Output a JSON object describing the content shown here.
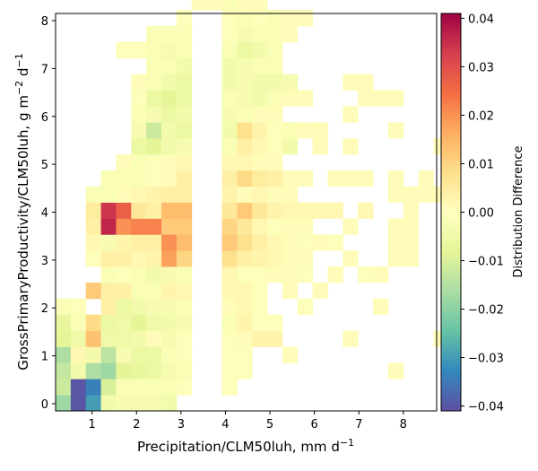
{
  "chart_data": {
    "type": "heatmap",
    "title": "",
    "xlabel": "Precipitation/CLM50luh,  mm d",
    "xlabel_unit_exp": "−1",
    "ylabel": "GrossPrimaryProductivity/CLM50luh,  g m",
    "ylabel_exp1": "−2",
    "ylabel_mid": " d",
    "ylabel_exp2": "−1",
    "xlim": [
      0.18,
      8.75
    ],
    "ylim": [
      -0.15,
      8.15
    ],
    "x_ticks": [
      1,
      2,
      3,
      4,
      5,
      6,
      7,
      8
    ],
    "x_tick_labels": [
      "1",
      "2",
      "3",
      "4",
      "5",
      "6",
      "7",
      "8"
    ],
    "y_ticks": [
      0,
      1,
      2,
      3,
      4,
      5,
      6,
      7,
      8
    ],
    "y_tick_labels": [
      "0",
      "1",
      "2",
      "3",
      "4",
      "5",
      "6",
      "7",
      "8"
    ],
    "x_bin_start": 0.18,
    "x_bin_width": 0.34,
    "y_bin_start": -0.15,
    "y_bin_width": 0.335,
    "colorbar": {
      "label": "Distribution Difference",
      "colormap": "Spectral_r",
      "vmin": -0.041,
      "vmax": 0.041,
      "ticks": [
        -0.04,
        -0.03,
        -0.02,
        -0.01,
        0.0,
        0.01,
        0.02,
        0.03,
        0.04
      ],
      "tick_labels": [
        "−0.04",
        "−0.03",
        "−0.02",
        "−0.01",
        "0.00",
        "0.01",
        "0.02",
        "0.03",
        "0.04"
      ]
    },
    "cells_note": "each cell: [x_bin_index, y_bin_index, value]",
    "cells": [
      [
        0,
        0,
        -0.018
      ],
      [
        1,
        0,
        -0.04
      ],
      [
        2,
        0,
        -0.03
      ],
      [
        3,
        0,
        -0.004
      ],
      [
        4,
        0,
        -0.003
      ],
      [
        5,
        0,
        -0.003
      ],
      [
        6,
        0,
        -0.003
      ],
      [
        7,
        0,
        -0.004
      ],
      [
        0,
        1,
        -0.012
      ],
      [
        1,
        1,
        -0.04
      ],
      [
        2,
        1,
        -0.034
      ],
      [
        3,
        1,
        -0.01
      ],
      [
        4,
        1,
        -0.002
      ],
      [
        5,
        1,
        -0.002
      ],
      [
        6,
        1,
        -0.002
      ],
      [
        7,
        1,
        -0.002
      ],
      [
        8,
        1,
        -0.001
      ],
      [
        11,
        1,
        -0.001
      ],
      [
        0,
        2,
        -0.013
      ],
      [
        1,
        2,
        -0.004
      ],
      [
        2,
        2,
        -0.016
      ],
      [
        3,
        2,
        -0.018
      ],
      [
        4,
        2,
        -0.008
      ],
      [
        5,
        2,
        -0.007
      ],
      [
        6,
        2,
        -0.006
      ],
      [
        7,
        2,
        -0.003
      ],
      [
        8,
        2,
        -0.002
      ],
      [
        11,
        2,
        -0.001
      ],
      [
        12,
        2,
        -0.001
      ],
      [
        22,
        2,
        0.001
      ],
      [
        0,
        3,
        -0.016
      ],
      [
        1,
        3,
        0.002
      ],
      [
        2,
        3,
        -0.004
      ],
      [
        3,
        3,
        -0.014
      ],
      [
        4,
        3,
        -0.003
      ],
      [
        5,
        3,
        -0.006
      ],
      [
        6,
        3,
        -0.006
      ],
      [
        7,
        3,
        -0.002
      ],
      [
        8,
        3,
        -0.001
      ],
      [
        11,
        3,
        -0.001
      ],
      [
        12,
        3,
        -0.001
      ],
      [
        15,
        3,
        0.001
      ],
      [
        0,
        4,
        -0.008
      ],
      [
        1,
        4,
        -0.005
      ],
      [
        2,
        4,
        0.013
      ],
      [
        3,
        4,
        -0.005
      ],
      [
        4,
        4,
        -0.005
      ],
      [
        5,
        4,
        -0.004
      ],
      [
        6,
        4,
        0.001
      ],
      [
        7,
        4,
        -0.003
      ],
      [
        8,
        4,
        -0.001
      ],
      [
        11,
        4,
        -0.001
      ],
      [
        12,
        4,
        0.001
      ],
      [
        13,
        4,
        0.003
      ],
      [
        14,
        4,
        0.003
      ],
      [
        19,
        4,
        0.001
      ],
      [
        25,
        4,
        0.001
      ],
      [
        0,
        5,
        -0.007
      ],
      [
        1,
        5,
        -0.002
      ],
      [
        2,
        5,
        0.009
      ],
      [
        3,
        5,
        -0.006
      ],
      [
        4,
        5,
        -0.005
      ],
      [
        5,
        5,
        -0.008
      ],
      [
        6,
        5,
        -0.005
      ],
      [
        7,
        5,
        -0.004
      ],
      [
        8,
        5,
        -0.003
      ],
      [
        11,
        5,
        -0.002
      ],
      [
        12,
        5,
        0.003
      ],
      [
        13,
        5,
        -0.001
      ],
      [
        14,
        5,
        -0.001
      ],
      [
        0,
        6,
        -0.002
      ],
      [
        1,
        6,
        -0.001
      ],
      [
        3,
        6,
        0.004
      ],
      [
        4,
        6,
        -0.006
      ],
      [
        5,
        6,
        -0.004
      ],
      [
        6,
        6,
        -0.003
      ],
      [
        7,
        6,
        -0.003
      ],
      [
        8,
        6,
        -0.002
      ],
      [
        11,
        6,
        0.001
      ],
      [
        12,
        6,
        0.002
      ],
      [
        13,
        6,
        -0.001
      ],
      [
        16,
        6,
        -0.001
      ],
      [
        21,
        6,
        0.001
      ],
      [
        2,
        7,
        0.012
      ],
      [
        3,
        7,
        0.004
      ],
      [
        4,
        7,
        0.004
      ],
      [
        5,
        7,
        -0.002
      ],
      [
        6,
        7,
        -0.002
      ],
      [
        7,
        7,
        0.003
      ],
      [
        8,
        7,
        0.002
      ],
      [
        11,
        7,
        0.002
      ],
      [
        12,
        7,
        0.002
      ],
      [
        13,
        7,
        -0.001
      ],
      [
        15,
        7,
        0.001
      ],
      [
        17,
        7,
        0.001
      ],
      [
        3,
        8,
        -0.002
      ],
      [
        4,
        8,
        -0.001
      ],
      [
        5,
        8,
        -0.002
      ],
      [
        6,
        8,
        -0.004
      ],
      [
        7,
        8,
        -0.003
      ],
      [
        8,
        8,
        -0.002
      ],
      [
        11,
        8,
        0.002
      ],
      [
        12,
        8,
        -0.001
      ],
      [
        13,
        8,
        -0.001
      ],
      [
        14,
        8,
        0.001
      ],
      [
        15,
        8,
        0.001
      ],
      [
        16,
        8,
        -0.001
      ],
      [
        18,
        8,
        0.001
      ],
      [
        20,
        8,
        -0.001
      ],
      [
        21,
        8,
        0.001
      ],
      [
        2,
        9,
        -0.001
      ],
      [
        3,
        9,
        0.004
      ],
      [
        4,
        9,
        0.004
      ],
      [
        5,
        9,
        0.002
      ],
      [
        6,
        9,
        0.003
      ],
      [
        7,
        9,
        0.018
      ],
      [
        8,
        9,
        0.01
      ],
      [
        11,
        9,
        0.008
      ],
      [
        12,
        9,
        0.004
      ],
      [
        13,
        9,
        0.003
      ],
      [
        14,
        9,
        0.002
      ],
      [
        15,
        9,
        0.001
      ],
      [
        16,
        9,
        0.001
      ],
      [
        19,
        9,
        0.001
      ],
      [
        22,
        9,
        0.001
      ],
      [
        23,
        9,
        0.001
      ],
      [
        2,
        10,
        0.002
      ],
      [
        3,
        10,
        -0.003
      ],
      [
        4,
        10,
        0.003
      ],
      [
        5,
        10,
        0.004
      ],
      [
        6,
        10,
        0.004
      ],
      [
        7,
        10,
        0.02
      ],
      [
        8,
        10,
        0.014
      ],
      [
        11,
        10,
        0.012
      ],
      [
        12,
        10,
        0.008
      ],
      [
        13,
        10,
        0.004
      ],
      [
        14,
        10,
        0.002
      ],
      [
        15,
        10,
        0.001
      ],
      [
        16,
        10,
        -0.001
      ],
      [
        17,
        10,
        0.001
      ],
      [
        18,
        10,
        -0.001
      ],
      [
        22,
        10,
        0.001
      ],
      [
        23,
        10,
        0.001
      ],
      [
        2,
        11,
        0.004
      ],
      [
        3,
        11,
        0.036
      ],
      [
        4,
        11,
        0.02
      ],
      [
        5,
        11,
        0.022
      ],
      [
        6,
        11,
        0.022
      ],
      [
        7,
        11,
        0.012
      ],
      [
        8,
        11,
        0.012
      ],
      [
        11,
        11,
        0.01
      ],
      [
        12,
        11,
        0.006
      ],
      [
        13,
        11,
        0.002
      ],
      [
        14,
        11,
        -0.001
      ],
      [
        15,
        11,
        0.001
      ],
      [
        16,
        11,
        0.001
      ],
      [
        19,
        11,
        0.001
      ],
      [
        22,
        11,
        0.001
      ],
      [
        23,
        11,
        0.001
      ],
      [
        2,
        12,
        0.005
      ],
      [
        3,
        12,
        0.034
      ],
      [
        4,
        12,
        0.027
      ],
      [
        5,
        12,
        0.006
      ],
      [
        6,
        12,
        0.004
      ],
      [
        7,
        12,
        0.014
      ],
      [
        8,
        12,
        0.014
      ],
      [
        11,
        12,
        0.006
      ],
      [
        12,
        12,
        0.012
      ],
      [
        13,
        12,
        0.006
      ],
      [
        14,
        12,
        0.003
      ],
      [
        15,
        12,
        0.002
      ],
      [
        16,
        12,
        0.002
      ],
      [
        17,
        12,
        0.002
      ],
      [
        18,
        12,
        0.002
      ],
      [
        20,
        12,
        0.002
      ],
      [
        23,
        12,
        0.001
      ],
      [
        2,
        13,
        -0.002
      ],
      [
        3,
        13,
        -0.002
      ],
      [
        4,
        13,
        0.001
      ],
      [
        5,
        13,
        0.002
      ],
      [
        6,
        13,
        0.003
      ],
      [
        7,
        13,
        0.004
      ],
      [
        8,
        13,
        0.004
      ],
      [
        11,
        13,
        0.003
      ],
      [
        12,
        13,
        0.001
      ],
      [
        13,
        13,
        0.002
      ],
      [
        14,
        13,
        0.001
      ],
      [
        15,
        13,
        0.001
      ],
      [
        22,
        13,
        0.001
      ],
      [
        23,
        13,
        0.001
      ],
      [
        24,
        13,
        0.001
      ],
      [
        25,
        13,
        0.001
      ],
      [
        3,
        14,
        -0.002
      ],
      [
        4,
        14,
        -0.002
      ],
      [
        5,
        14,
        -0.002
      ],
      [
        6,
        14,
        -0.001
      ],
      [
        7,
        14,
        0.001
      ],
      [
        8,
        14,
        0.004
      ],
      [
        11,
        14,
        0.004
      ],
      [
        12,
        14,
        0.009
      ],
      [
        13,
        14,
        0.005
      ],
      [
        14,
        14,
        0.004
      ],
      [
        15,
        14,
        0.001
      ],
      [
        16,
        14,
        0.001
      ],
      [
        18,
        14,
        0.001
      ],
      [
        19,
        14,
        0.001
      ],
      [
        20,
        14,
        0.001
      ],
      [
        22,
        14,
        0.001
      ],
      [
        24,
        14,
        0.001
      ],
      [
        4,
        15,
        0.001
      ],
      [
        5,
        15,
        -0.002
      ],
      [
        6,
        15,
        -0.001
      ],
      [
        7,
        15,
        0.001
      ],
      [
        8,
        15,
        0.002
      ],
      [
        11,
        15,
        0.002
      ],
      [
        12,
        15,
        0.002
      ],
      [
        13,
        15,
        0.001
      ],
      [
        14,
        15,
        0.001
      ],
      [
        5,
        16,
        -0.006
      ],
      [
        6,
        16,
        -0.008
      ],
      [
        7,
        16,
        -0.004
      ],
      [
        8,
        16,
        -0.003
      ],
      [
        11,
        16,
        -0.002
      ],
      [
        12,
        16,
        0.004
      ],
      [
        13,
        16,
        0.002
      ],
      [
        14,
        16,
        -0.001
      ],
      [
        15,
        16,
        -0.004
      ],
      [
        17,
        16,
        0.001
      ],
      [
        19,
        16,
        0.001
      ],
      [
        25,
        16,
        0.001
      ],
      [
        5,
        17,
        -0.003
      ],
      [
        6,
        17,
        -0.012
      ],
      [
        7,
        17,
        -0.004
      ],
      [
        8,
        17,
        -0.006
      ],
      [
        11,
        17,
        -0.004
      ],
      [
        12,
        17,
        0.008
      ],
      [
        13,
        17,
        0.003
      ],
      [
        14,
        17,
        -0.001
      ],
      [
        15,
        17,
        -0.002
      ],
      [
        16,
        17,
        0.001
      ],
      [
        17,
        17,
        0.001
      ],
      [
        22,
        17,
        0.001
      ],
      [
        5,
        18,
        -0.002
      ],
      [
        6,
        18,
        -0.003
      ],
      [
        7,
        18,
        -0.006
      ],
      [
        8,
        18,
        -0.004
      ],
      [
        11,
        18,
        -0.003
      ],
      [
        12,
        18,
        -0.002
      ],
      [
        13,
        18,
        0.001
      ],
      [
        14,
        18,
        0.001
      ],
      [
        19,
        18,
        0.001
      ],
      [
        5,
        19,
        -0.001
      ],
      [
        6,
        19,
        -0.006
      ],
      [
        7,
        19,
        -0.008
      ],
      [
        8,
        19,
        -0.006
      ],
      [
        11,
        19,
        -0.002
      ],
      [
        12,
        19,
        -0.003
      ],
      [
        13,
        19,
        -0.004
      ],
      [
        14,
        19,
        -0.002
      ],
      [
        15,
        19,
        0.001
      ],
      [
        16,
        19,
        0.001
      ],
      [
        20,
        19,
        0.001
      ],
      [
        21,
        19,
        0.001
      ],
      [
        22,
        19,
        0.001
      ],
      [
        5,
        20,
        0.001
      ],
      [
        6,
        20,
        -0.002
      ],
      [
        7,
        20,
        -0.004
      ],
      [
        8,
        20,
        -0.006
      ],
      [
        11,
        20,
        -0.004
      ],
      [
        12,
        20,
        -0.003
      ],
      [
        13,
        20,
        -0.004
      ],
      [
        14,
        20,
        -0.004
      ],
      [
        15,
        20,
        -0.003
      ],
      [
        19,
        20,
        0.001
      ],
      [
        20,
        20,
        0.001
      ],
      [
        6,
        21,
        -0.002
      ],
      [
        7,
        21,
        -0.002
      ],
      [
        8,
        21,
        -0.004
      ],
      [
        11,
        21,
        -0.004
      ],
      [
        12,
        21,
        -0.003
      ],
      [
        13,
        21,
        -0.002
      ],
      [
        14,
        21,
        -0.002
      ],
      [
        4,
        22,
        -0.001
      ],
      [
        5,
        22,
        -0.001
      ],
      [
        6,
        22,
        -0.002
      ],
      [
        7,
        22,
        -0.003
      ],
      [
        8,
        22,
        -0.002
      ],
      [
        11,
        22,
        -0.002
      ],
      [
        12,
        22,
        -0.006
      ],
      [
        13,
        22,
        -0.004
      ],
      [
        14,
        22,
        -0.002
      ],
      [
        6,
        23,
        -0.002
      ],
      [
        7,
        23,
        -0.002
      ],
      [
        8,
        23,
        -0.002
      ],
      [
        11,
        23,
        -0.001
      ],
      [
        12,
        23,
        -0.003
      ],
      [
        13,
        23,
        -0.002
      ],
      [
        14,
        23,
        -0.002
      ],
      [
        15,
        23,
        0.001
      ],
      [
        8,
        24,
        -0.001
      ],
      [
        11,
        24,
        -0.001
      ],
      [
        12,
        24,
        -0.002
      ],
      [
        13,
        24,
        -0.001
      ],
      [
        14,
        24,
        -0.002
      ],
      [
        15,
        24,
        0.001
      ],
      [
        16,
        24,
        0.001
      ],
      [
        9,
        25,
        0.001
      ],
      [
        10,
        25,
        0.001
      ],
      [
        11,
        25,
        -0.002
      ],
      [
        12,
        25,
        0.001
      ],
      [
        13,
        25,
        0.001
      ],
      [
        9,
        26,
        0.001
      ],
      [
        10,
        26,
        0.001
      ],
      [
        11,
        26,
        0.001
      ],
      [
        9,
        27,
        0.001
      ],
      [
        10,
        27,
        0.001
      ],
      [
        11,
        27,
        0.001
      ],
      [
        11,
        28,
        0.001
      ],
      [
        10,
        28,
        0.001
      ],
      [
        11,
        29,
        0.001
      ],
      [
        11,
        30,
        0.001
      ],
      [
        11,
        31,
        0.001
      ],
      [
        11,
        32,
        0.001
      ],
      [
        10,
        32,
        0.001
      ],
      [
        11,
        33,
        0.001
      ],
      [
        11,
        34,
        0.001
      ],
      [
        11,
        35,
        0.001
      ],
      [
        11,
        36,
        0.001
      ],
      [
        10,
        36,
        0.001
      ],
      [
        11,
        37,
        0.001
      ]
    ]
  }
}
